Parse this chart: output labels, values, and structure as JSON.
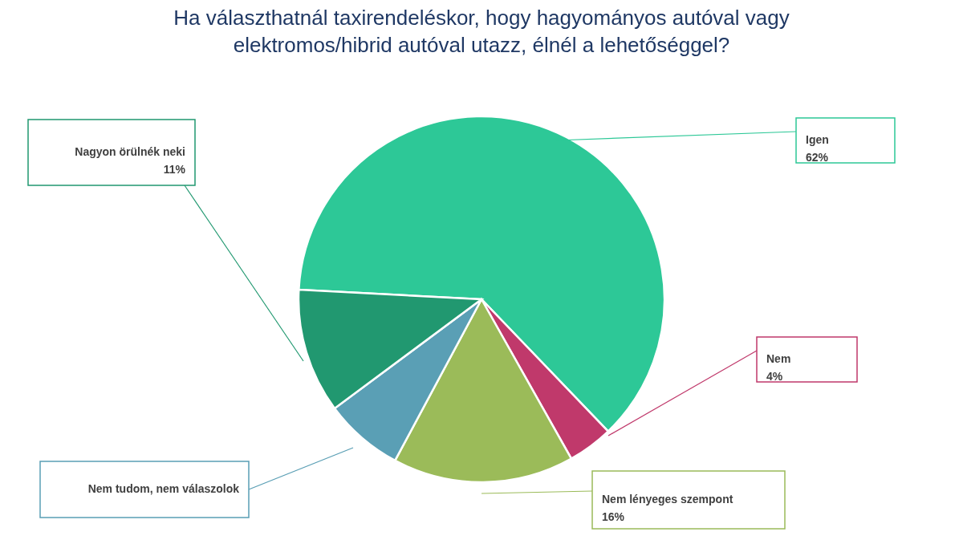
{
  "chart_data": {
    "type": "pie",
    "title": "Ha választhatnál taxirendeléskor, hogy hagyományos autóval vagy\nelektromos/hibrid autóval utazz, élnél a lehetőséggel?",
    "categories": [
      "Igen",
      "Nem",
      "Nem lényeges szempont",
      "Nem tudom, nem válaszolok",
      "Nagyon örülnék neki"
    ],
    "values": [
      62,
      4,
      16,
      7,
      11
    ],
    "value_labels": [
      "62%",
      "4%",
      "16%",
      null,
      "11%"
    ],
    "colors": [
      "#2dc897",
      "#c0396b",
      "#9bbb59",
      "#5a9fb5",
      "#219870"
    ]
  }
}
